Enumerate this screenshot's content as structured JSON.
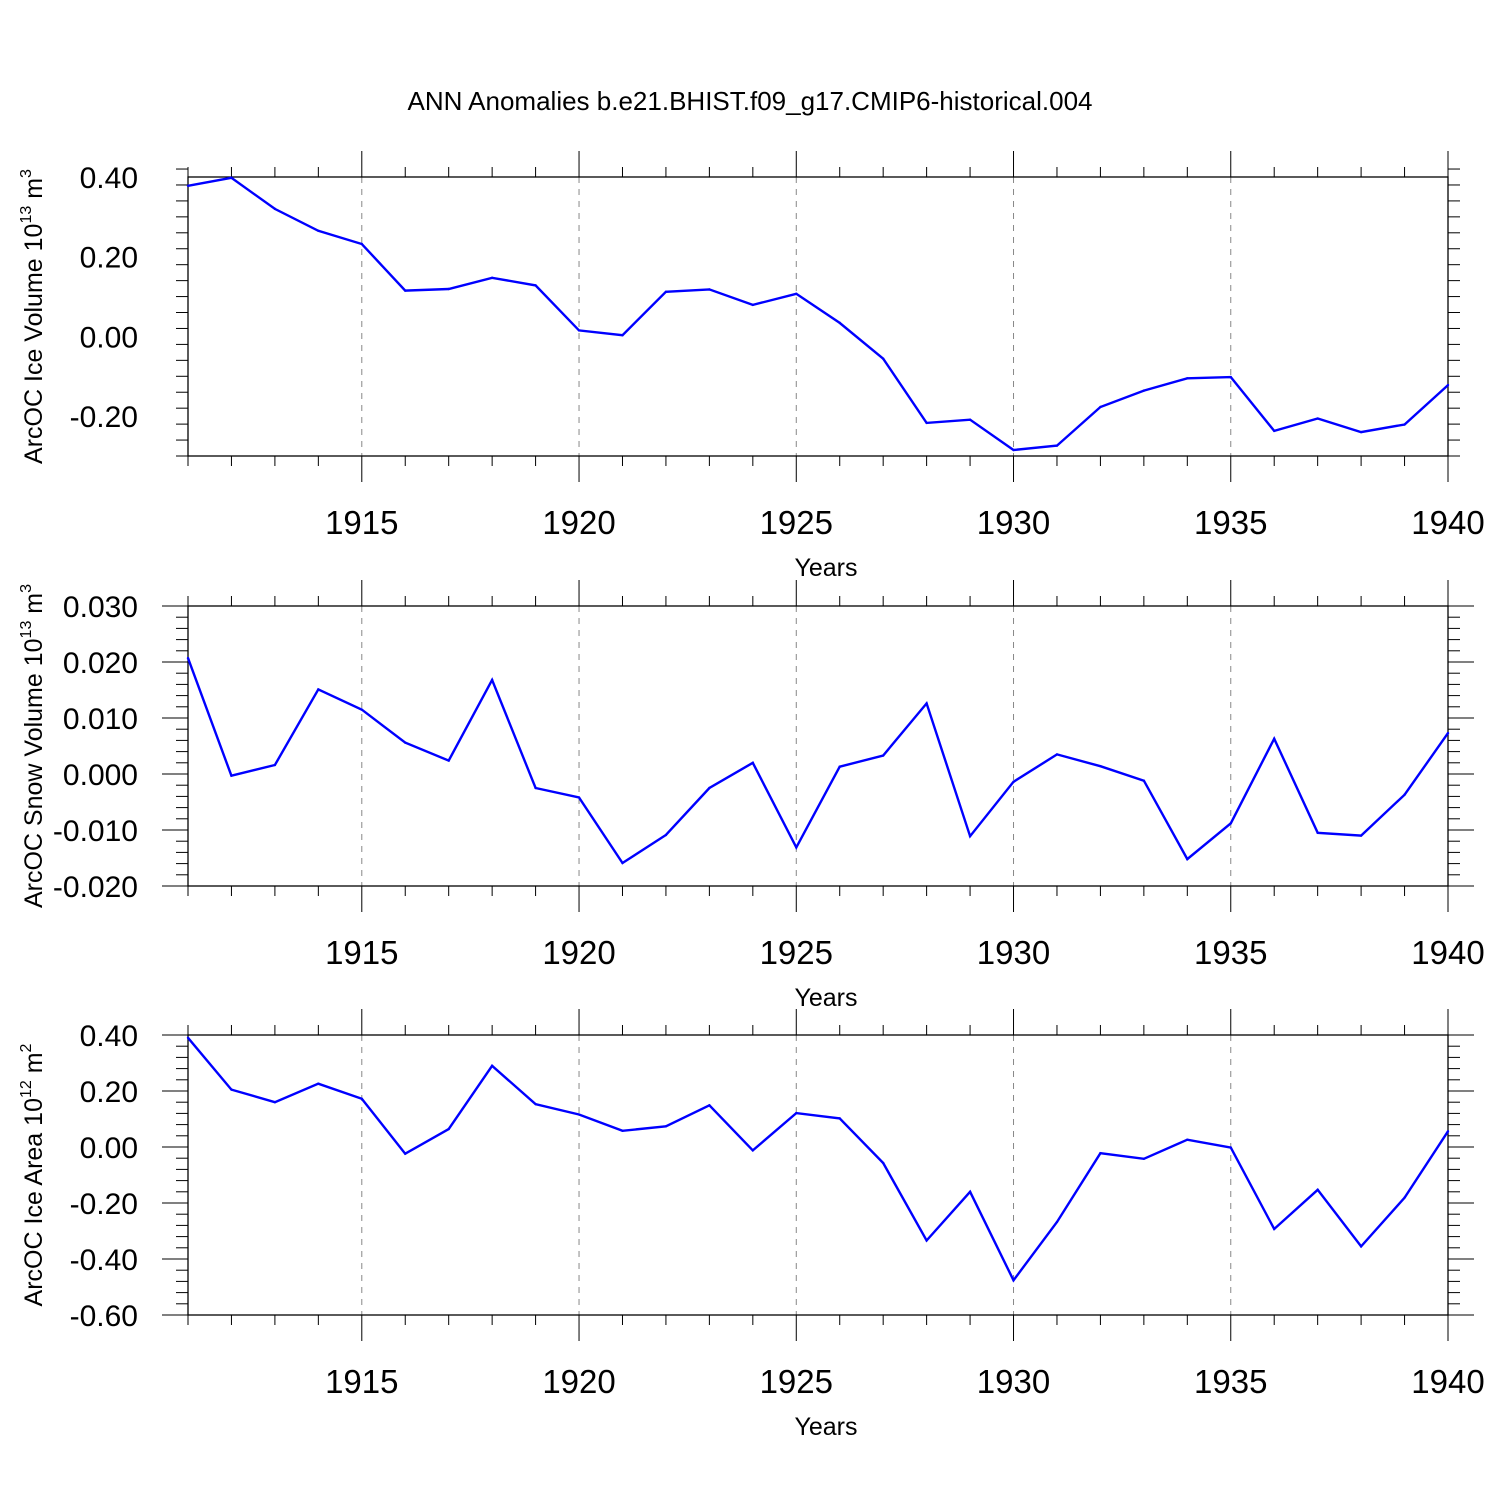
{
  "chart_data": {
    "type": "line",
    "title": "ANN Anomalies b.e21.BHIST.f09_g17.CMIP6-historical.004",
    "x": [
      1911,
      1912,
      1913,
      1914,
      1915,
      1916,
      1917,
      1918,
      1919,
      1920,
      1921,
      1922,
      1923,
      1924,
      1925,
      1926,
      1927,
      1928,
      1929,
      1930,
      1931,
      1932,
      1933,
      1934,
      1935,
      1936,
      1937,
      1938,
      1939,
      1940
    ],
    "xlim": [
      1911,
      1940
    ],
    "xticks": [
      1915,
      1920,
      1925,
      1930,
      1935,
      1940
    ],
    "line_color": "#0000ff",
    "panels": [
      {
        "id": "ice-volume",
        "ylabel_main": "ArcOC Ice Volume 10",
        "ylabel_exp": "13",
        "ylabel_unit": " m",
        "ylabel_unit_exp": "3",
        "xlabel": "Years",
        "ylim": [
          -0.3,
          0.4
        ],
        "yticks": [
          0.4,
          0.2,
          0.0,
          -0.2
        ],
        "ytick_labels": [
          "0.40",
          "0.20",
          "0.00",
          "-0.20"
        ],
        "minor_step": 0.04,
        "values": [
          0.378,
          0.398,
          0.32,
          0.265,
          0.232,
          0.115,
          0.119,
          0.147,
          0.128,
          0.015,
          0.003,
          0.112,
          0.118,
          0.079,
          0.107,
          0.034,
          -0.056,
          -0.217,
          -0.209,
          -0.285,
          -0.274,
          -0.177,
          -0.136,
          -0.105,
          -0.102,
          -0.237,
          -0.206,
          -0.24,
          -0.221,
          -0.122
        ]
      },
      {
        "id": "snow-volume",
        "ylabel_main": "ArcOC Snow Volume 10",
        "ylabel_exp": "13",
        "ylabel_unit": " m",
        "ylabel_unit_exp": "3",
        "xlabel": "Years",
        "ylim": [
          -0.02,
          0.03
        ],
        "yticks": [
          0.03,
          0.02,
          0.01,
          0.0,
          -0.01,
          -0.02
        ],
        "ytick_labels": [
          "0.030",
          "0.020",
          "0.010",
          "0.000",
          "-0.010",
          "-0.020"
        ],
        "minor_step": 0.002,
        "values": [
          0.0207,
          -0.0003,
          0.0016,
          0.0151,
          0.0115,
          0.0056,
          0.0024,
          0.0168,
          -0.0025,
          -0.0042,
          -0.0159,
          -0.0109,
          -0.0025,
          0.002,
          -0.0131,
          0.0013,
          0.0033,
          0.0126,
          -0.0111,
          -0.0014,
          0.0035,
          0.0014,
          -0.0012,
          -0.0152,
          -0.0088,
          0.0063,
          -0.0105,
          -0.011,
          -0.0037,
          0.0073
        ]
      },
      {
        "id": "ice-area",
        "ylabel_main": "ArcOC Ice Area 10",
        "ylabel_exp": "12",
        "ylabel_unit": " m",
        "ylabel_unit_exp": "2",
        "xlabel": "Years",
        "ylim": [
          -0.6,
          0.4
        ],
        "yticks": [
          0.4,
          0.2,
          0.0,
          -0.2,
          -0.4,
          -0.6
        ],
        "ytick_labels": [
          "0.40",
          "0.20",
          "0.00",
          "-0.20",
          "-0.40",
          "-0.60"
        ],
        "minor_step": 0.04,
        "values": [
          0.39,
          0.205,
          0.16,
          0.226,
          0.172,
          -0.024,
          0.064,
          0.29,
          0.153,
          0.116,
          0.058,
          0.074,
          0.149,
          -0.012,
          0.121,
          0.102,
          -0.057,
          -0.334,
          -0.16,
          -0.476,
          -0.268,
          -0.022,
          -0.042,
          0.026,
          -0.002,
          -0.293,
          -0.153,
          -0.355,
          -0.181,
          0.056
        ]
      }
    ]
  }
}
